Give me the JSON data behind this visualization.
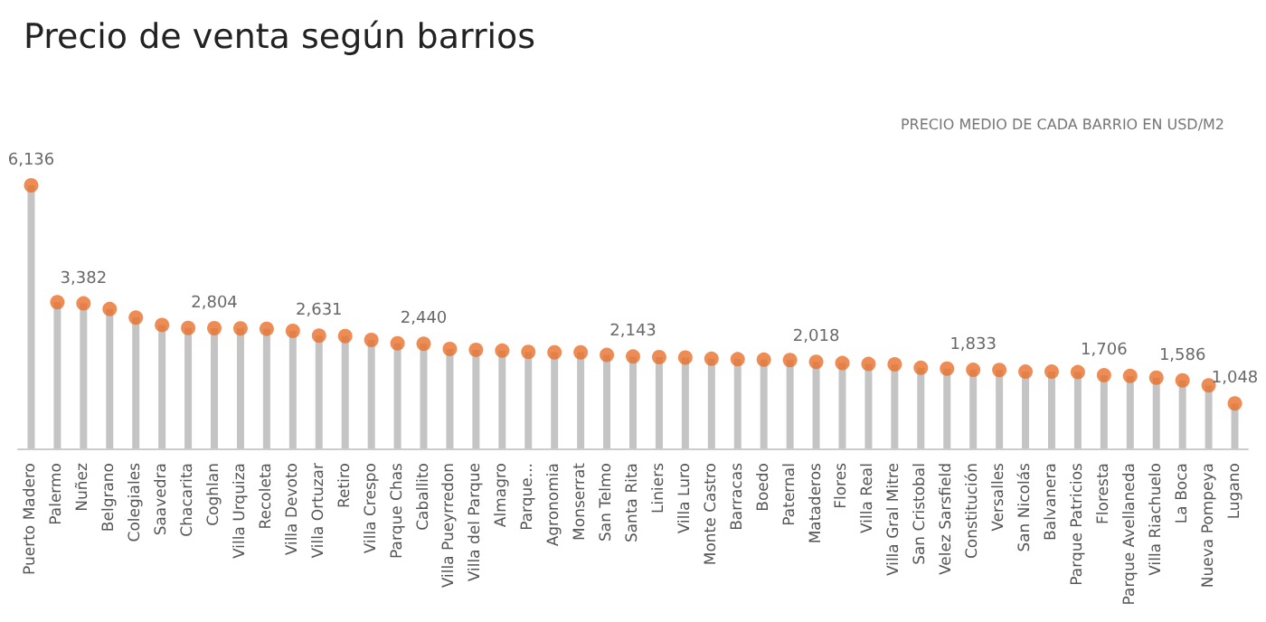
{
  "chart_data": {
    "type": "lollipop",
    "title": "Precio de venta según barrios",
    "subtitle": "PRECIO MEDIO DE CADA BARRIO EN USD/M2",
    "categories": [
      "Puerto Madero",
      "Palermo",
      "Nuñez",
      "Belgrano",
      "Colegiales",
      "Saavedra",
      "Chacarita",
      "Coghlan",
      "Villa Urquiza",
      "Recoleta",
      "Villa Devoto",
      "Villa Ortuzar",
      "Retiro",
      "Villa Crespo",
      "Parque Chas",
      "Caballito",
      "Villa Pueyrredon",
      "Villa del Parque",
      "Almagro",
      "Parque...",
      "Agronomia",
      "Monserrat",
      "San Telmo",
      "Santa Rita",
      "Liniers",
      "Villa Luro",
      "Monte Castro",
      "Barracas",
      "Boedo",
      "Paternal",
      "Mataderos",
      "Flores",
      "Villa Real",
      "Villa Gral Mitre",
      "San Cristobal",
      "Velez Sarsfield",
      "Constitución",
      "Versalles",
      "San Nicolás",
      "Balvanera",
      "Parque Patricios",
      "Floresta",
      "Parque Avellaneda",
      "Villa Riachuelo",
      "La Boca",
      "Nueva Pompeya",
      "Lugano"
    ],
    "series": [
      {
        "color": "#e8712a",
        "values": [
          6136,
          3410,
          3382,
          3250,
          3050,
          2880,
          2810,
          2804,
          2800,
          2790,
          2740,
          2631,
          2620,
          2530,
          2450,
          2440,
          2320,
          2300,
          2280,
          2250,
          2240,
          2240,
          2180,
          2143,
          2130,
          2120,
          2090,
          2080,
          2070,
          2060,
          2018,
          1990,
          1970,
          1960,
          1880,
          1860,
          1833,
          1830,
          1790,
          1790,
          1780,
          1706,
          1690,
          1650,
          1586,
          1470,
          1048
        ],
        "value_labels": [
          "6,136",
          null,
          "3,382",
          null,
          null,
          null,
          null,
          "2,804",
          null,
          null,
          null,
          "2,631",
          null,
          null,
          null,
          "2,440",
          null,
          null,
          null,
          null,
          null,
          null,
          null,
          "2,143",
          null,
          null,
          null,
          null,
          null,
          null,
          "2,018",
          null,
          null,
          null,
          null,
          null,
          "1,833",
          null,
          null,
          null,
          null,
          "1,706",
          null,
          null,
          "1,586",
          null,
          "1,048"
        ]
      }
    ],
    "marker": "circle"
  }
}
